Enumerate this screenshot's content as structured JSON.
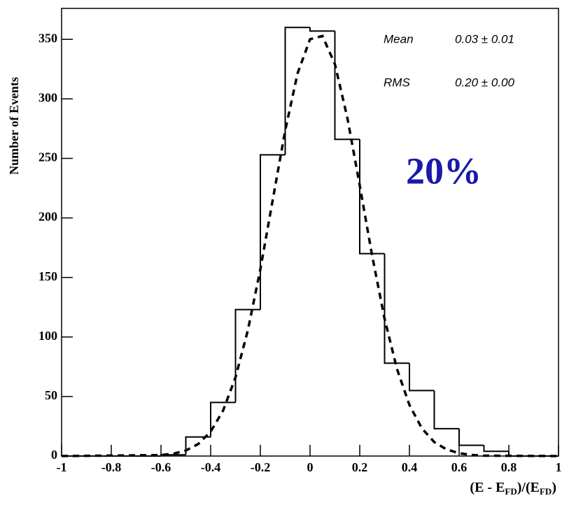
{
  "chart_data": {
    "type": "histogram",
    "ylabel": "Number of Events",
    "xlabel": {
      "parts": [
        "(E - E",
        "FD",
        ")/(E",
        "FD",
        ")"
      ]
    },
    "bins": [
      -1,
      -0.9,
      -0.8,
      -0.7,
      -0.6,
      -0.5,
      -0.4,
      -0.3,
      -0.2,
      -0.1,
      0,
      0.1,
      0.2,
      0.3,
      0.4,
      0.5,
      0.6,
      0.7,
      0.8,
      0.9,
      1
    ],
    "values": [
      0,
      0,
      0,
      0,
      1,
      16,
      45,
      123,
      253,
      360,
      357,
      266,
      170,
      78,
      55,
      23,
      9,
      4,
      0,
      0
    ],
    "color": "#000000",
    "fit": {
      "x": [
        -1,
        -0.6,
        -0.55,
        -0.5,
        -0.45,
        -0.4,
        -0.35,
        -0.3,
        -0.25,
        -0.2,
        -0.15,
        -0.1,
        -0.05,
        0,
        0.05,
        0.1,
        0.15,
        0.2,
        0.25,
        0.3,
        0.35,
        0.4,
        0.45,
        0.5,
        0.55,
        0.6,
        0.65,
        0.7,
        1
      ],
      "values": [
        0,
        0.8,
        2,
        4.6,
        10.1,
        20.5,
        38.2,
        66.1,
        105.9,
        156.9,
        215.3,
        273.5,
        321.6,
        350.1,
        352.8,
        329.2,
        284.3,
        227.3,
        168.2,
        115.3,
        73.1,
        42.9,
        23.3,
        11.7,
        5.5,
        2.4,
        0.9,
        0.3,
        0
      ],
      "color": "#000000"
    },
    "xlim": [
      -1,
      1
    ],
    "xticks": [
      -1,
      -0.8,
      -0.6,
      -0.4,
      -0.2,
      0,
      0.2,
      0.4,
      0.6,
      0.8,
      1
    ],
    "ylim": [
      0,
      376
    ],
    "yticks": [
      0,
      50,
      100,
      150,
      200,
      250,
      300,
      350
    ],
    "stats": [
      {
        "name": "Mean",
        "value": "0.03 ± 0.01"
      },
      {
        "name": "RMS",
        "value": "0.20 ± 0.00"
      }
    ],
    "annotation": {
      "text": "20%",
      "color": "#1a1aa8"
    }
  }
}
